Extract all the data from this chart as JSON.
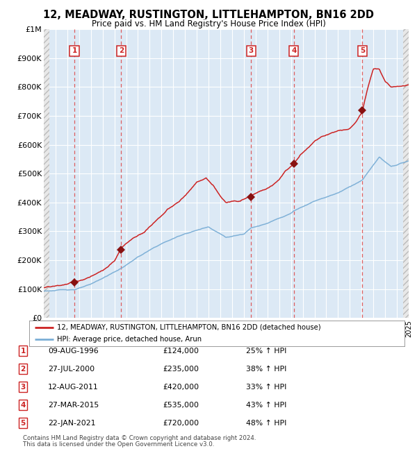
{
  "title": "12, MEADWAY, RUSTINGTON, LITTLEHAMPTON, BN16 2DD",
  "subtitle": "Price paid vs. HM Land Registry's House Price Index (HPI)",
  "x_start_year": 1994,
  "x_end_year": 2025,
  "y_min": 0,
  "y_max": 1000000,
  "y_ticks": [
    0,
    100000,
    200000,
    300000,
    400000,
    500000,
    600000,
    700000,
    800000,
    900000,
    1000000
  ],
  "y_tick_labels": [
    "£0",
    "£100K",
    "£200K",
    "£300K",
    "£400K",
    "£500K",
    "£600K",
    "£700K",
    "£800K",
    "£900K",
    "£1M"
  ],
  "sale_dates_num": [
    1996.6,
    2000.57,
    2011.62,
    2015.24,
    2021.07
  ],
  "sale_prices": [
    124000,
    235000,
    420000,
    535000,
    720000
  ],
  "sale_labels": [
    "1",
    "2",
    "3",
    "4",
    "5"
  ],
  "sale_info": [
    {
      "label": "1",
      "date": "09-AUG-1996",
      "price": "£124,000",
      "hpi": "25% ↑ HPI"
    },
    {
      "label": "2",
      "date": "27-JUL-2000",
      "price": "£235,000",
      "hpi": "38% ↑ HPI"
    },
    {
      "label": "3",
      "date": "12-AUG-2011",
      "price": "£420,000",
      "hpi": "33% ↑ HPI"
    },
    {
      "label": "4",
      "date": "27-MAR-2015",
      "price": "£535,000",
      "hpi": "43% ↑ HPI"
    },
    {
      "label": "5",
      "date": "22-JAN-2021",
      "price": "£720,000",
      "hpi": "48% ↑ HPI"
    }
  ],
  "hpi_line_color": "#7aaed6",
  "price_line_color": "#cc2222",
  "sale_marker_color": "#881111",
  "dashed_line_color": "#dd4444",
  "plot_bg_color": "#dce9f5",
  "outer_bg_color": "#ffffff",
  "grid_color": "#ffffff",
  "legend_label_property": "12, MEADWAY, RUSTINGTON, LITTLEHAMPTON, BN16 2DD (detached house)",
  "legend_label_hpi": "HPI: Average price, detached house, Arun",
  "footnote1": "Contains HM Land Registry data © Crown copyright and database right 2024.",
  "footnote2": "This data is licensed under the Open Government Licence v3.0."
}
